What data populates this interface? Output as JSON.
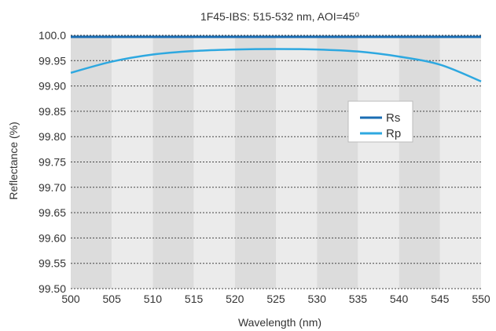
{
  "chart_data": {
    "type": "line",
    "title": "1F45-IBS: 515-532 nm, AOI=45⁰",
    "xlabel": "Wavelength (nm)",
    "ylabel": "Reflectance (%)",
    "xlim": [
      500,
      550
    ],
    "ylim": [
      99.5,
      100.0
    ],
    "x_ticks": [
      "500",
      "505",
      "510",
      "515",
      "520",
      "525",
      "530",
      "535",
      "540",
      "545",
      "550"
    ],
    "y_ticks": [
      "99.50",
      "99.55",
      "99.60",
      "99.65",
      "99.70",
      "99.75",
      "99.80",
      "99.85",
      "99.90",
      "99.95",
      "100.0"
    ],
    "grid": "horizontal dotted",
    "background_bands": "alternating gray every 5 nm",
    "legend_position": "center-right",
    "series": [
      {
        "name": "Rs",
        "color": "#1a6db3",
        "x": [
          500,
          505,
          510,
          515,
          520,
          525,
          530,
          535,
          540,
          545,
          550
        ],
        "y": [
          99.997,
          99.997,
          99.997,
          99.997,
          99.997,
          99.997,
          99.997,
          99.997,
          99.997,
          99.997,
          99.997
        ]
      },
      {
        "name": "Rp",
        "color": "#2ea8e0",
        "x": [
          500,
          505,
          510,
          515,
          520,
          525,
          530,
          535,
          540,
          545,
          550
        ],
        "y": [
          99.926,
          99.948,
          99.962,
          99.969,
          99.972,
          99.973,
          99.972,
          99.968,
          99.958,
          99.942,
          99.909
        ]
      }
    ]
  }
}
